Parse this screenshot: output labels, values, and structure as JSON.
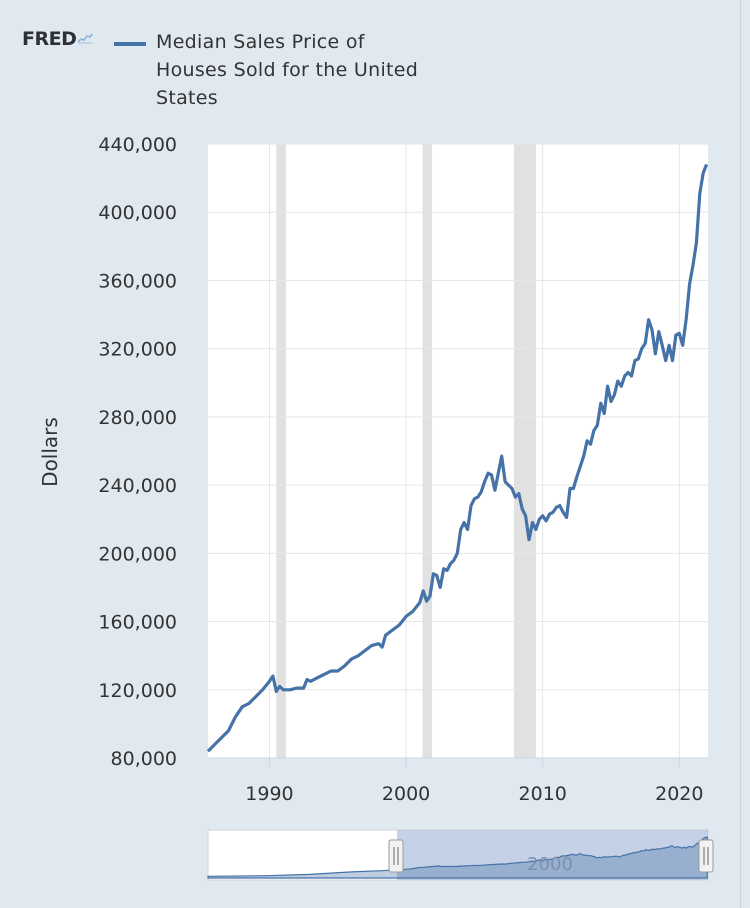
{
  "brand": {
    "name": "FRED",
    "mark_icon": "line-graph-icon"
  },
  "chart_data": {
    "type": "line",
    "title": "",
    "xlabel": "",
    "ylabel": "Dollars",
    "xlim": [
      1985.5,
      2022.1
    ],
    "ylim": [
      80000,
      440000
    ],
    "grid": true,
    "legend_position": "top-left",
    "y_ticks": [
      80000,
      120000,
      160000,
      200000,
      240000,
      280000,
      320000,
      360000,
      400000,
      440000
    ],
    "y_tick_labels": [
      "80,000",
      "120,000",
      "160,000",
      "200,000",
      "240,000",
      "280,000",
      "320,000",
      "360,000",
      "400,000",
      "440,000"
    ],
    "x_ticks": [
      1990,
      2000,
      2010,
      2020
    ],
    "x_tick_labels": [
      "1990",
      "2000",
      "2010",
      "2020"
    ],
    "recessions": [
      [
        1990.5,
        1991.2
      ],
      [
        2001.2,
        2001.9
      ],
      [
        2007.9,
        2009.5
      ]
    ],
    "series": [
      {
        "name": "Median Sales Price of Houses Sold for the United States",
        "color": "#4572a7",
        "points": [
          [
            1985.5,
            84000
          ],
          [
            1986.0,
            88000
          ],
          [
            1986.5,
            92000
          ],
          [
            1987.0,
            96000
          ],
          [
            1987.5,
            104000
          ],
          [
            1988.0,
            110000
          ],
          [
            1988.5,
            112000
          ],
          [
            1989.0,
            116000
          ],
          [
            1989.5,
            120000
          ],
          [
            1990.0,
            125000
          ],
          [
            1990.25,
            128000
          ],
          [
            1990.5,
            119000
          ],
          [
            1990.75,
            122000
          ],
          [
            1991.0,
            120000
          ],
          [
            1991.5,
            120000
          ],
          [
            1992.0,
            121000
          ],
          [
            1992.5,
            121000
          ],
          [
            1992.75,
            126000
          ],
          [
            1993.0,
            125000
          ],
          [
            1993.5,
            127000
          ],
          [
            1994.0,
            129000
          ],
          [
            1994.5,
            131000
          ],
          [
            1995.0,
            131000
          ],
          [
            1995.5,
            134000
          ],
          [
            1996.0,
            138000
          ],
          [
            1996.5,
            140000
          ],
          [
            1997.0,
            143000
          ],
          [
            1997.5,
            146000
          ],
          [
            1998.0,
            147000
          ],
          [
            1998.25,
            145000
          ],
          [
            1998.5,
            152000
          ],
          [
            1999.0,
            155000
          ],
          [
            1999.5,
            158000
          ],
          [
            2000.0,
            163000
          ],
          [
            2000.5,
            166000
          ],
          [
            2001.0,
            171000
          ],
          [
            2001.25,
            178000
          ],
          [
            2001.5,
            172000
          ],
          [
            2001.75,
            175000
          ],
          [
            2002.0,
            188000
          ],
          [
            2002.25,
            187000
          ],
          [
            2002.5,
            180000
          ],
          [
            2002.75,
            191000
          ],
          [
            2003.0,
            190000
          ],
          [
            2003.25,
            194000
          ],
          [
            2003.5,
            196000
          ],
          [
            2003.75,
            200000
          ],
          [
            2004.0,
            214000
          ],
          [
            2004.25,
            218000
          ],
          [
            2004.5,
            214000
          ],
          [
            2004.75,
            228000
          ],
          [
            2005.0,
            232000
          ],
          [
            2005.25,
            233000
          ],
          [
            2005.5,
            236000
          ],
          [
            2005.75,
            242000
          ],
          [
            2006.0,
            247000
          ],
          [
            2006.25,
            246000
          ],
          [
            2006.5,
            237000
          ],
          [
            2006.75,
            247000
          ],
          [
            2007.0,
            257000
          ],
          [
            2007.25,
            242000
          ],
          [
            2007.5,
            240000
          ],
          [
            2007.75,
            238000
          ],
          [
            2008.0,
            233000
          ],
          [
            2008.25,
            235000
          ],
          [
            2008.5,
            226000
          ],
          [
            2008.75,
            222000
          ],
          [
            2009.0,
            208000
          ],
          [
            2009.25,
            218000
          ],
          [
            2009.5,
            214000
          ],
          [
            2009.75,
            220000
          ],
          [
            2010.0,
            222000
          ],
          [
            2010.25,
            219000
          ],
          [
            2010.5,
            223000
          ],
          [
            2010.75,
            224000
          ],
          [
            2011.0,
            227000
          ],
          [
            2011.25,
            228000
          ],
          [
            2011.5,
            224000
          ],
          [
            2011.75,
            221000
          ],
          [
            2012.0,
            238000
          ],
          [
            2012.25,
            238000
          ],
          [
            2012.5,
            245000
          ],
          [
            2012.75,
            251000
          ],
          [
            2013.0,
            257000
          ],
          [
            2013.25,
            266000
          ],
          [
            2013.5,
            264000
          ],
          [
            2013.75,
            272000
          ],
          [
            2014.0,
            275000
          ],
          [
            2014.25,
            288000
          ],
          [
            2014.5,
            282000
          ],
          [
            2014.75,
            298000
          ],
          [
            2015.0,
            289000
          ],
          [
            2015.25,
            293000
          ],
          [
            2015.5,
            301000
          ],
          [
            2015.75,
            298000
          ],
          [
            2016.0,
            304000
          ],
          [
            2016.25,
            306000
          ],
          [
            2016.5,
            304000
          ],
          [
            2016.75,
            313000
          ],
          [
            2017.0,
            314000
          ],
          [
            2017.25,
            320000
          ],
          [
            2017.5,
            323000
          ],
          [
            2017.75,
            337000
          ],
          [
            2018.0,
            331000
          ],
          [
            2018.25,
            317000
          ],
          [
            2018.5,
            330000
          ],
          [
            2018.75,
            322000
          ],
          [
            2019.0,
            313000
          ],
          [
            2019.25,
            322000
          ],
          [
            2019.5,
            313000
          ],
          [
            2019.75,
            328000
          ],
          [
            2020.0,
            329000
          ],
          [
            2020.25,
            322000
          ],
          [
            2020.5,
            337000
          ],
          [
            2020.75,
            358000
          ],
          [
            2021.0,
            369000
          ],
          [
            2021.25,
            382000
          ],
          [
            2021.5,
            411000
          ],
          [
            2021.75,
            423000
          ],
          [
            2022.0,
            428000
          ]
        ]
      }
    ],
    "navigator": {
      "x_tick_labels": [
        "2000"
      ],
      "range": [
        1999.0,
        2022.0
      ]
    }
  }
}
